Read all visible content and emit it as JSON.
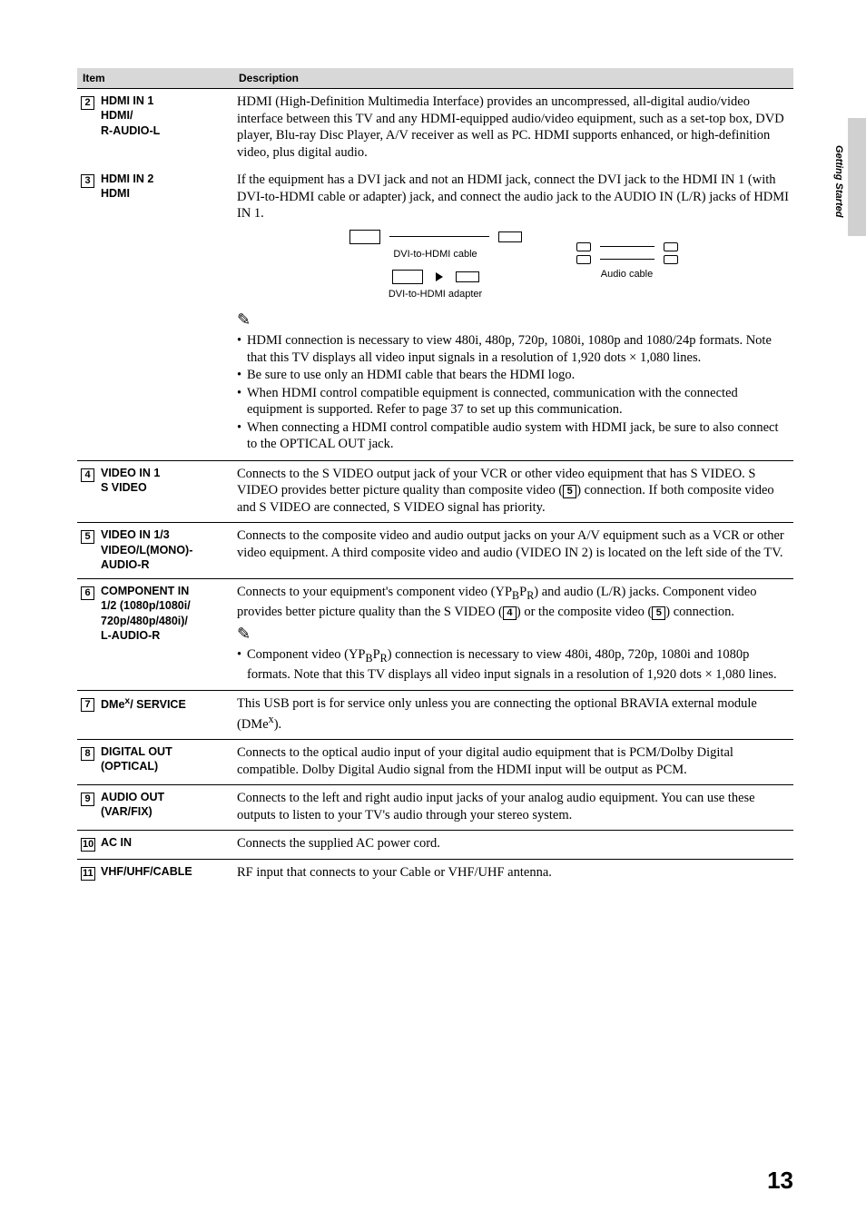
{
  "side_label": "Getting Started",
  "header": {
    "item": "Item",
    "desc": "Description"
  },
  "rows": [
    {
      "num": "2",
      "name_lines": [
        "HDMI IN 1",
        "HDMI/",
        "R-AUDIO-L"
      ],
      "desc_html": "HDMI (High-Definition Multimedia Interface) provides an uncompressed, all-digital audio/video interface between this TV and any HDMI-equipped audio/video equipment, such as a set-top box, DVD player, Blu-ray Disc Player, A/V receiver as well as PC. HDMI supports enhanced, or high-definition video, plus digital audio."
    },
    {
      "num": "3",
      "name_lines": [
        "HDMI IN 2",
        "HDMI"
      ],
      "desc_intro": "If the equipment has a DVI jack and not an HDMI jack, connect the DVI jack to the HDMI IN 1 (with DVI-to-HDMI cable or adapter) jack, and connect the audio jack to the AUDIO IN (L/R) jacks of HDMI IN 1.",
      "diagram": {
        "dvi_cable": "DVI-to-HDMI cable",
        "dvi_adapter": "DVI-to-HDMI adapter",
        "audio_cable": "Audio cable"
      },
      "bullets": [
        "HDMI connection is necessary to view 480i, 480p, 720p, 1080i, 1080p and 1080/24p formats. Note that this TV displays all video input signals in a resolution of 1,920 dots × 1,080 lines.",
        "Be sure to use only an HDMI cable that bears the HDMI logo.",
        "When HDMI control compatible equipment is connected, communication with the connected equipment is supported. Refer to page 37 to set up this communication.",
        "When connecting a HDMI control compatible audio system with HDMI jack, be sure to also connect to the OPTICAL OUT jack."
      ]
    },
    {
      "num": "4",
      "name_lines": [
        "VIDEO IN 1",
        "S VIDEO"
      ],
      "desc_html": "Connects to the S VIDEO output jack of your VCR or other video equipment that has S VIDEO. S VIDEO provides better picture quality than composite video (<span class=\"num-box\" data-name=\"ref-box-5\">5</span>) connection. If both composite video and S VIDEO are connected, S VIDEO signal has priority."
    },
    {
      "num": "5",
      "name_lines": [
        "VIDEO IN 1/3",
        "VIDEO/L(MONO)-",
        "AUDIO-R"
      ],
      "desc_html": "Connects to the composite video and audio output jacks on your A/V equipment such as a VCR or other video equipment. A third composite video and audio (VIDEO IN 2) is located on the left side of the TV."
    },
    {
      "num": "6",
      "name_lines": [
        "COMPONENT IN",
        "1/2 (1080p/1080i/",
        "720p/480p/480i)/",
        "L-AUDIO-R"
      ],
      "desc_html": "Connects to your equipment's component video (YP<sub>B</sub>P<sub>R</sub>) and audio (L/R) jacks. Component video provides better picture quality than the S VIDEO (<span class=\"num-box\" data-name=\"ref-box-4\">4</span>) or the composite video (<span class=\"num-box\" data-name=\"ref-box-5b\">5</span>) connection.",
      "bullets": [
        "Component video (YP<sub>B</sub>P<sub>R</sub>) connection is necessary to view 480i, 480p, 720p, 1080i and 1080p formats. Note that this TV displays all video input signals in a resolution of 1,920 dots × 1,080 lines."
      ]
    },
    {
      "num": "7",
      "name_lines": [
        "DMe<sup>x</sup>/ SERVICE"
      ],
      "desc_html": "This USB port is for service only unless you are connecting the optional BRAVIA external module (DMe<sup>x</sup>)."
    },
    {
      "num": "8",
      "name_lines": [
        "DIGITAL OUT",
        "(OPTICAL)"
      ],
      "desc_html": "Connects to the optical audio input of your digital audio equipment that is PCM/Dolby Digital compatible. Dolby Digital Audio signal from the HDMI input will be output as PCM."
    },
    {
      "num": "9",
      "name_lines": [
        "AUDIO OUT",
        "(VAR/FIX)"
      ],
      "desc_html": "Connects to the left and right audio input jacks of your analog audio equipment. You can use these outputs to listen to your TV's audio through your stereo system."
    },
    {
      "num": "10",
      "name_lines": [
        "AC IN"
      ],
      "desc_html": "Connects the supplied AC power cord."
    },
    {
      "num": "11",
      "name_lines": [
        "VHF/UHF/CABLE"
      ],
      "desc_html": "RF input that connects to your Cable or VHF/UHF antenna."
    }
  ],
  "page_number": "13"
}
